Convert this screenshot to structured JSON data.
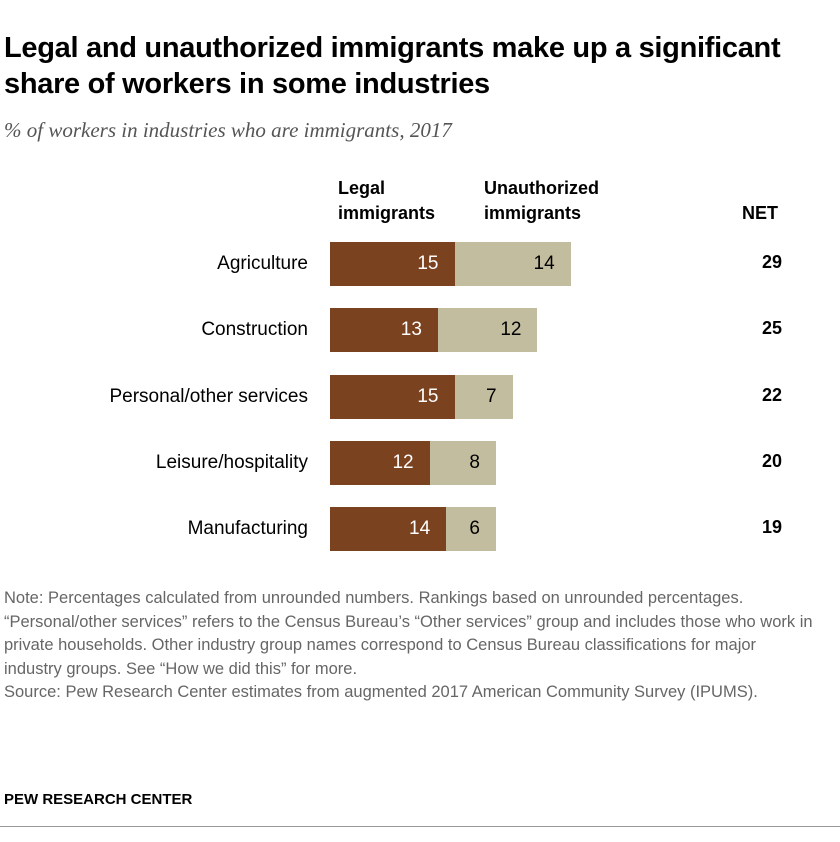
{
  "title": "Legal and unauthorized immigrants make up a significant share of workers in some industries",
  "subtitle": "% of workers in industries who are immigrants, 2017",
  "chart_data": {
    "type": "bar",
    "stacked": true,
    "orientation": "horizontal",
    "categories": [
      "Agriculture",
      "Construction",
      "Personal/other services",
      "Leisure/hospitality",
      "Manufacturing"
    ],
    "series": [
      {
        "name": "Legal immigrants",
        "color": "#7b4220",
        "values": [
          15,
          13,
          15,
          12,
          14
        ]
      },
      {
        "name": "Unauthorized immigrants",
        "color": "#c3bd9f",
        "values": [
          14,
          12,
          7,
          8,
          6
        ]
      }
    ],
    "net_label": "NET",
    "net": [
      29,
      25,
      22,
      20,
      19
    ]
  },
  "legend": {
    "legal_line1": "Legal",
    "legal_line2": "immigrants",
    "unauth_line1": "Unauthorized",
    "unauth_line2": "immigrants"
  },
  "note": "Note: Percentages calculated from unrounded numbers. Rankings based on unrounded percentages. “Personal/other services” refers to the Census Bureau’s “Other services” group and includes those who work in private households. Other industry group names correspond to Census Bureau classifications for major industry groups. See “How we did this” for more.",
  "source": "Source: Pew Research Center estimates from augmented 2017 American Community Survey (IPUMS).",
  "brand": "PEW RESEARCH CENTER"
}
